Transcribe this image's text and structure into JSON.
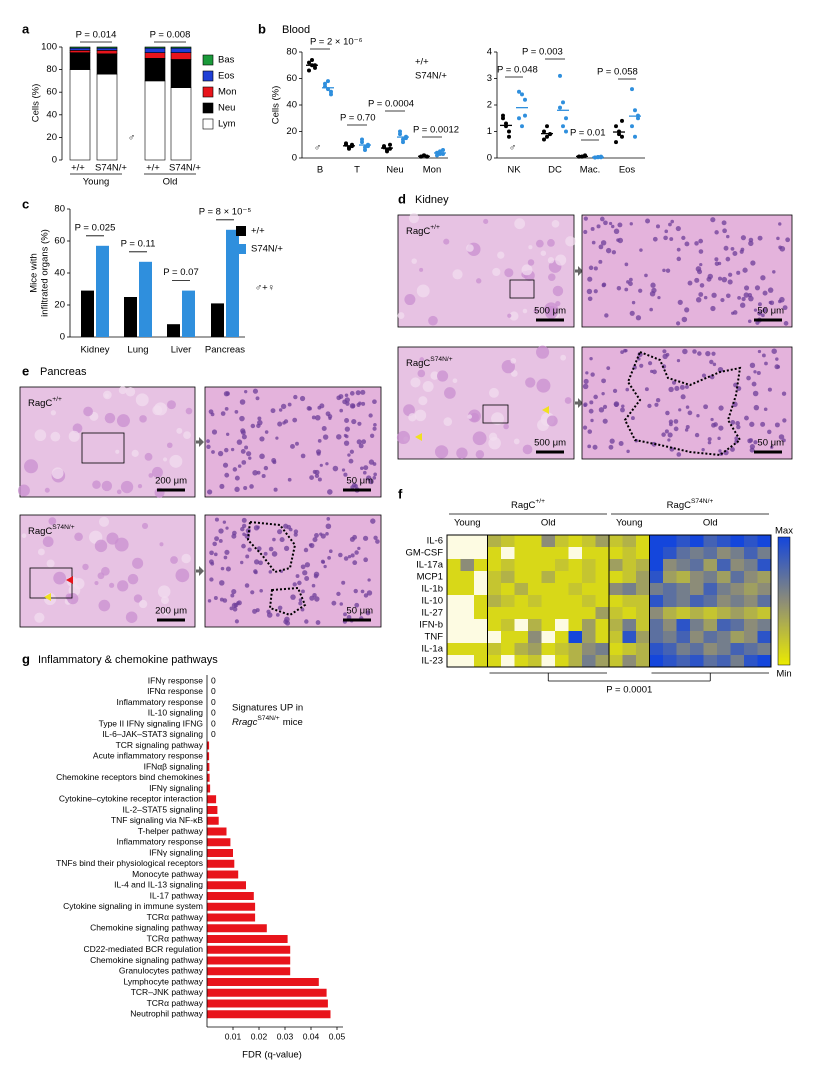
{
  "panel_labels": [
    "a",
    "b",
    "c",
    "d",
    "e",
    "f",
    "g"
  ],
  "chart_data": [
    {
      "type": "stacked_bar",
      "ylabel": "Cells (%)",
      "categories": [
        "+/+",
        "S74N/+",
        "+/+",
        "S74N/+"
      ],
      "category_colors": [
        "#000000",
        "#2f8fdd",
        "#000000",
        "#2f8fdd"
      ],
      "groups": [
        "Young",
        "Old"
      ],
      "annotations": [
        "P = 0.014",
        "P = 0.008"
      ],
      "symbol": "♂",
      "ylim": [
        0,
        100
      ],
      "yticks": [
        0,
        20,
        40,
        60,
        80,
        100
      ],
      "series": [
        {
          "name": "Lym",
          "color": "#ffffff",
          "values": [
            80,
            76,
            70,
            64
          ]
        },
        {
          "name": "Neu",
          "color": "#000000",
          "values": [
            15,
            18,
            20,
            25
          ]
        },
        {
          "name": "Mon",
          "color": "#e8141b",
          "values": [
            2,
            3,
            5,
            6
          ]
        },
        {
          "name": "Eos",
          "color": "#1f3fd6",
          "values": [
            2,
            2,
            4,
            4
          ]
        },
        {
          "name": "Bas",
          "color": "#1a9a3a",
          "values": [
            1,
            1,
            1,
            1
          ]
        }
      ]
    },
    {
      "type": "dot",
      "title": "Blood",
      "ylabel": "Cells (%)",
      "symbol": "♂",
      "categories": [
        "B",
        "T",
        "Neu",
        "Mon"
      ],
      "ylim": [
        0,
        80
      ],
      "yticks": [
        0,
        20,
        40,
        60,
        80
      ],
      "annotations": [
        "P = 2 × 10⁻⁶",
        "P = 0.70",
        "P = 0.0004",
        "P = 0.0012"
      ],
      "series": [
        {
          "name": "+/+",
          "color": "#000000",
          "values": [
            [
              72,
              70,
              68,
              66,
              74,
              70
            ],
            [
              10,
              8,
              9,
              11,
              7,
              10
            ],
            [
              8,
              6,
              7,
              9,
              5,
              10
            ],
            [
              1,
              2,
              1,
              1,
              2,
              1
            ]
          ],
          "means": [
            70,
            9.2,
            7.5,
            1.3
          ]
        },
        {
          "name": "S74N/+",
          "color": "#2f8fdd",
          "values": [
            [
              56,
              52,
              50,
              54,
              58,
              48
            ],
            [
              12,
              8,
              10,
              14,
              6,
              9
            ],
            [
              18,
              14,
              16,
              20,
              12,
              15
            ],
            [
              4,
              3,
              6,
              2,
              5,
              3
            ]
          ],
          "means": [
            53,
            9.8,
            15.8,
            3.8
          ]
        }
      ]
    },
    {
      "type": "dot",
      "symbol": "♂",
      "categories": [
        "NK",
        "DC",
        "Mac.",
        "Eos"
      ],
      "ylim": [
        0,
        4
      ],
      "yticks": [
        0,
        1,
        2,
        3,
        4
      ],
      "annotations": [
        "P = 0.048",
        "P = 0.003",
        "P = 0.01",
        "P = 0.058"
      ],
      "series": [
        {
          "color": "#000000",
          "values": [
            [
              1.5,
              1.3,
              1.0,
              1.6,
              1.2,
              0.8
            ],
            [
              1.0,
              0.8,
              0.9,
              0.7,
              1.2,
              0.9
            ],
            [
              0.05,
              0.05,
              0.1,
              0.05,
              0.05,
              0.08
            ],
            [
              1.2,
              0.9,
              0.8,
              0.6,
              1.0,
              1.4
            ]
          ],
          "means": [
            1.23,
            0.92,
            0.06,
            0.98
          ]
        },
        {
          "color": "#2f8fdd",
          "values": [
            [
              2.5,
              2.4,
              1.6,
              1.5,
              1.2,
              2.2
            ],
            [
              3.1,
              2.1,
              1.5,
              1.9,
              1.2,
              1.0
            ],
            [
              0.02,
              0.03,
              0.05,
              0.02,
              0.04,
              0.03
            ],
            [
              2.6,
              1.8,
              1.6,
              1.2,
              0.8,
              1.5
            ]
          ],
          "means": [
            1.9,
            1.8,
            0.03,
            1.58
          ]
        }
      ]
    },
    {
      "type": "bar",
      "ylabel": [
        "Mice with",
        "infiltrated organs (%)"
      ],
      "symbol": "♂+♀",
      "categories": [
        "Kidney",
        "Lung",
        "Liver",
        "Pancreas"
      ],
      "ylim": [
        0,
        80
      ],
      "yticks": [
        0,
        20,
        40,
        60,
        80
      ],
      "annotations": [
        "P = 0.025",
        "P = 0.11",
        "P = 0.07",
        "P = 8 × 10⁻⁵"
      ],
      "series": [
        {
          "name": "+/+",
          "color": "#000000",
          "values": [
            29,
            25,
            8,
            21
          ]
        },
        {
          "name": "S74N/+",
          "color": "#2f8fdd",
          "values": [
            57,
            47,
            29,
            67
          ]
        }
      ]
    },
    {
      "type": "heatmap",
      "rows": [
        "IL-6",
        "GM-CSF",
        "IL-17a",
        "MCP1",
        "IL-1b",
        "IL-10",
        "IL-27",
        "IFN-b",
        "TNF",
        "IL-1a",
        "IL-23"
      ],
      "groups": [
        {
          "label": {
            "base": "RagC",
            "sup": "+/+"
          },
          "color": "#000000"
        },
        {
          "label": {
            "base": "RagC",
            "sup": "S74N/+"
          },
          "color": "#2f8fdd"
        }
      ],
      "column_groups": [
        {
          "label": "Young",
          "count": 3
        },
        {
          "label": "Old",
          "count": 9
        },
        {
          "label": "Young",
          "count": 3
        },
        {
          "label": "Old",
          "count": 9
        }
      ],
      "vlim": [
        0,
        1
      ],
      "colormap": [
        "#ebeb00",
        "#8c8c78",
        "#1446dc"
      ],
      "colorbar_labels": [
        "Max",
        "Min"
      ],
      "annotation": "P = 0.0001",
      "values": [
        [
          null,
          null,
          null,
          0.3,
          0.2,
          0.1,
          0.1,
          0.5,
          0.2,
          0.1,
          0.2,
          0.4,
          0.2,
          0.3,
          0.1,
          1,
          1,
          0.9,
          1,
          0.8,
          0.9,
          1,
          0.9,
          1
        ],
        [
          null,
          null,
          null,
          0.1,
          null,
          0.1,
          0.1,
          0.1,
          0.1,
          null,
          0.1,
          0.1,
          0.1,
          0.2,
          0.1,
          1,
          0.9,
          0.7,
          0.6,
          0.7,
          0.5,
          0.6,
          0.8,
          0.6
        ],
        [
          0.1,
          0.5,
          0.1,
          0.1,
          0.2,
          0.1,
          0.1,
          0.1,
          0.2,
          0.1,
          0.2,
          0.1,
          0.4,
          0.2,
          0.3,
          1,
          0.5,
          0.6,
          0.7,
          0.4,
          0.8,
          0.5,
          0.6,
          0.9
        ],
        [
          0.1,
          0.1,
          null,
          0.2,
          0.3,
          0.1,
          0.1,
          0.3,
          0.1,
          0.1,
          0.2,
          0.1,
          0.1,
          0.2,
          0.4,
          0.9,
          0.4,
          0.3,
          0.5,
          0.6,
          0.4,
          0.7,
          0.5,
          0.4
        ],
        [
          0.1,
          0.1,
          null,
          0.2,
          0.1,
          0.3,
          0.1,
          0.1,
          0.1,
          0.2,
          0.1,
          0.1,
          0.5,
          0.6,
          0.4,
          0.6,
          0.7,
          0.6,
          0.5,
          0.8,
          0.6,
          0.5,
          0.4,
          0.5
        ],
        [
          null,
          null,
          0.1,
          0.3,
          0.2,
          0.1,
          0.2,
          0.1,
          0.1,
          0.1,
          0.2,
          0.1,
          0.1,
          0.2,
          0.2,
          0.9,
          0.7,
          0.6,
          0.8,
          0.7,
          0.5,
          0.6,
          0.5,
          0.7
        ],
        [
          null,
          null,
          0.1,
          0.1,
          0.1,
          0.1,
          0.1,
          0.1,
          0.1,
          0.1,
          0.1,
          0.4,
          0.2,
          0.1,
          0.2,
          0.5,
          0.3,
          0.2,
          0.3,
          0.2,
          0.3,
          0.4,
          0.3,
          0.2
        ],
        [
          null,
          null,
          null,
          0.1,
          0.2,
          null,
          0.3,
          0.1,
          null,
          0.1,
          0.4,
          0.1,
          0.3,
          0.6,
          0.2,
          0.7,
          0.5,
          0.9,
          0.6,
          0.4,
          0.8,
          0.7,
          0.5,
          0.6
        ],
        [
          null,
          null,
          null,
          null,
          0.1,
          0.1,
          0.5,
          null,
          0.1,
          1,
          0.4,
          0.1,
          0.2,
          0.9,
          0.4,
          0.7,
          0.6,
          0.8,
          0.5,
          0.7,
          0.6,
          0.4,
          0.5,
          0.9
        ],
        [
          0.1,
          0.1,
          0.1,
          0.2,
          0.1,
          0.3,
          0.4,
          0.1,
          0.2,
          0.3,
          0.5,
          0.6,
          0.1,
          0.2,
          0.3,
          0.9,
          0.8,
          0.6,
          0.7,
          0.5,
          0.6,
          0.8,
          0.7,
          0.6
        ],
        [
          null,
          null,
          0.1,
          0.1,
          null,
          0.1,
          0.2,
          null,
          0.1,
          0.3,
          0.6,
          0.4,
          0.2,
          0.5,
          0.3,
          1,
          0.9,
          0.8,
          0.9,
          0.7,
          0.8,
          0.6,
          0.9,
          1
        ]
      ]
    },
    {
      "type": "hbar",
      "title": "Inflammatory & chemokine pathways",
      "xlabel": "FDR (q-value)",
      "color": "#e8141b",
      "xlim": [
        0,
        0.05
      ],
      "xticks": [
        0.01,
        0.02,
        0.03,
        0.04,
        0.05
      ],
      "annotation": {
        "line1": "Signatures UP in",
        "gene": "Rragc",
        "sup": "S74N/+",
        "tail": "mice"
      },
      "categories": [
        "IFNγ response",
        "IFNα response",
        "Inflammatory response",
        "IL-10 signaling",
        "Type II IFNγ signaling IFNG",
        "IL-6–JAK–STAT3 signaling",
        "TCR signaling pathway",
        "Acute inflammatory response",
        "IFNαβ signaling",
        "Chemokine receptors bind chemokines",
        "IFNγ signaling",
        "Cytokine–cytokine receptor interaction",
        "IL-2–STAT5 signaling",
        "TNF signaling via NF-κB",
        "T-helper pathway",
        "Inflammatory response",
        "IFNγ signaling",
        "TNFs bind their physiological receptors",
        "Monocyte pathway",
        "IL-4 and IL-13 signaling",
        "IL-17 pathway",
        "Cytokine signaling in immune system",
        "TCRα pathway",
        "Chemokine signaling pathway",
        "TCRα pathway",
        "CD22-mediated BCR regulation",
        "Chemokine signaling pathway",
        "Granulocytes pathway",
        "Lymphocyte pathway",
        "TCR–JNK pathway",
        "TCRα pathway",
        "Neutrophil pathway"
      ],
      "values": [
        0,
        0,
        0,
        0,
        0,
        0,
        0.0008,
        0.0008,
        0.0009,
        0.001,
        0.0012,
        0.0035,
        0.004,
        0.0045,
        0.0075,
        0.009,
        0.01,
        0.0105,
        0.012,
        0.015,
        0.018,
        0.0185,
        0.0185,
        0.023,
        0.031,
        0.032,
        0.032,
        0.032,
        0.043,
        0.046,
        0.0465,
        0.0475
      ],
      "value_labels": [
        "0",
        "0",
        "0",
        "0",
        "0",
        "0",
        null,
        null,
        null,
        null,
        null,
        null,
        null,
        null,
        null,
        null,
        null,
        null,
        null,
        null,
        null,
        null,
        null,
        null,
        null,
        null,
        null,
        null,
        null,
        null,
        null,
        null
      ]
    }
  ],
  "histology": [
    {
      "title": "Kidney",
      "images": [
        {
          "label": {
            "base": "RagC",
            "sup": "+/+"
          },
          "label_color": "#000000",
          "scale_bar": "500 μm"
        },
        {
          "scale_bar": "50 μm"
        },
        {
          "label": {
            "base": "RagC",
            "sup": "S74N/+"
          },
          "label_color": "#2f8fdd",
          "scale_bar": "500 μm"
        },
        {
          "scale_bar": "50 μm"
        }
      ]
    },
    {
      "title": "Pancreas",
      "images": [
        {
          "label": {
            "base": "RagC",
            "sup": "+/+"
          },
          "label_color": "#000000",
          "scale_bar": "200 μm"
        },
        {
          "scale_bar": "50 μm"
        },
        {
          "label": {
            "base": "RagC",
            "sup": "S74N/+"
          },
          "label_color": "#2f8fdd",
          "scale_bar": "200 μm"
        },
        {
          "scale_bar": "50 μm"
        }
      ]
    }
  ]
}
